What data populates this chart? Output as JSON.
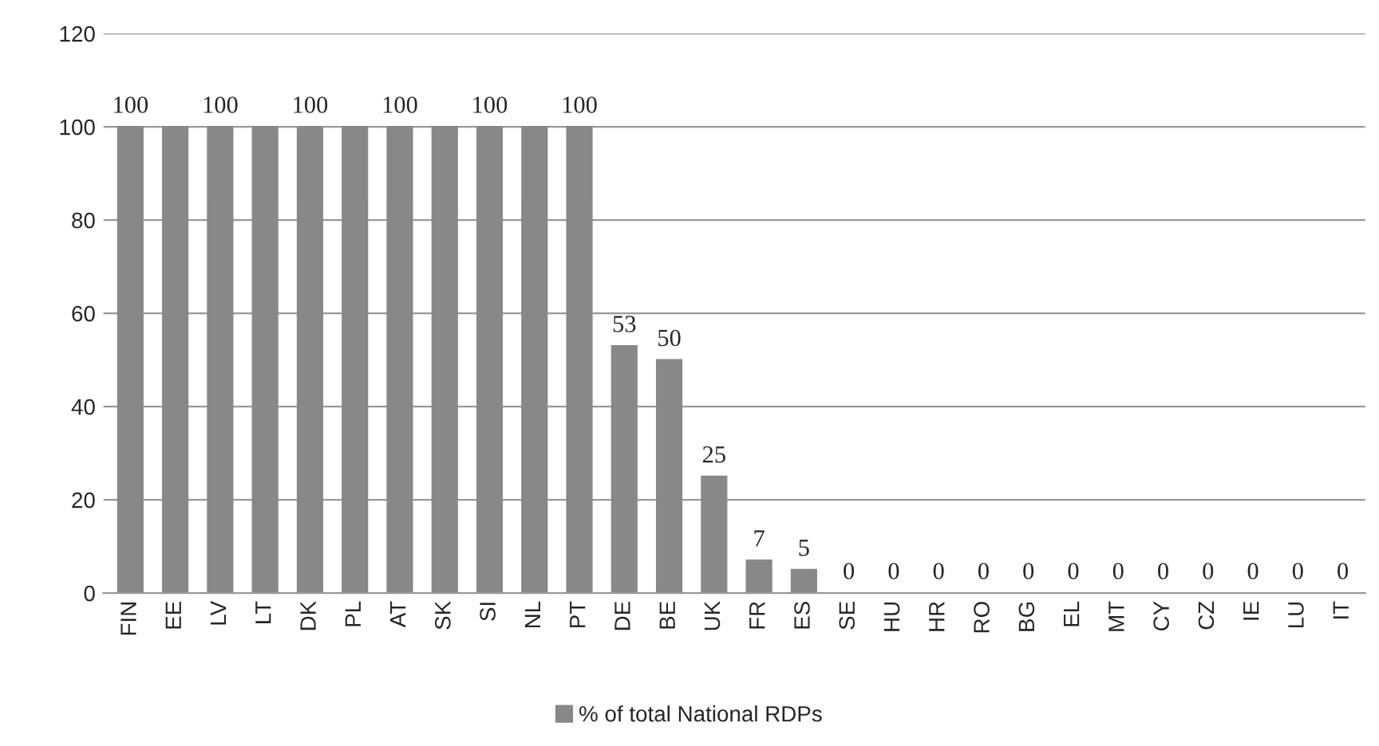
{
  "chart_data": {
    "type": "bar",
    "categories": [
      "FIN",
      "EE",
      "LV",
      "LT",
      "DK",
      "PL",
      "AT",
      "SK",
      "SI",
      "NL",
      "PT",
      "DE",
      "BE",
      "UK",
      "FR",
      "ES",
      "SE",
      "HU",
      "HR",
      "RO",
      "BG",
      "EL",
      "MT",
      "CY",
      "CZ",
      "IE",
      "LU",
      "IT"
    ],
    "series": [
      {
        "name": "% of total National RDPs",
        "color": "#888888",
        "values": [
          100,
          100,
          100,
          100,
          100,
          100,
          100,
          100,
          100,
          100,
          100,
          53,
          50,
          25,
          7,
          5,
          0,
          0,
          0,
          0,
          0,
          0,
          0,
          0,
          0,
          0,
          0,
          0
        ],
        "value_labels": [
          "100",
          null,
          "100",
          null,
          "100",
          null,
          "100",
          null,
          "100",
          null,
          "100",
          "53",
          "50",
          "25",
          "7",
          "5",
          "0",
          "0",
          "0",
          "0",
          "0",
          "0",
          "0",
          "0",
          "0",
          "0",
          "0",
          "0"
        ]
      }
    ],
    "ylim": [
      0,
      120
    ],
    "yticks": [
      0,
      20,
      40,
      60,
      80,
      100,
      120
    ],
    "grid": "y",
    "legend": "bottom"
  }
}
